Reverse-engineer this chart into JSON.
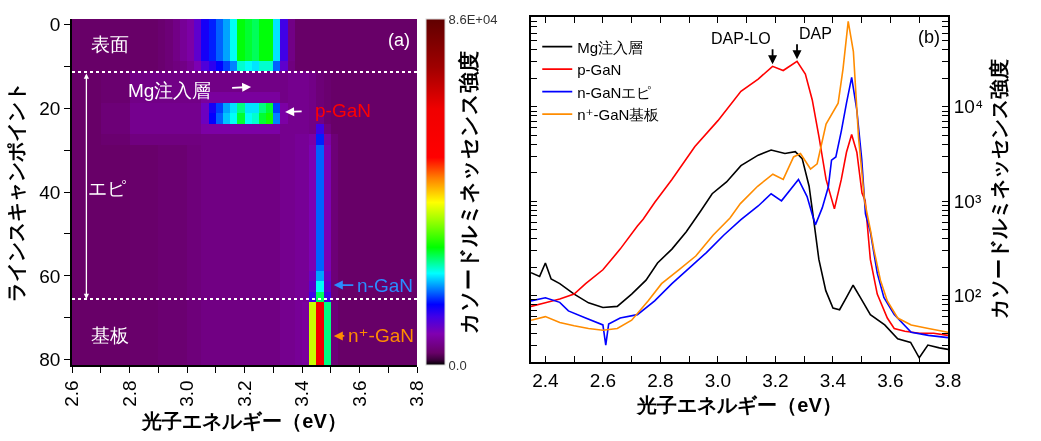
{
  "chart_data": [
    {
      "type": "heatmap",
      "xlabel": "光子エネルギー（eV）",
      "ylabel": "ラインスキャンポイント",
      "clabel": "カソードルミネッセンス強度",
      "x": [
        2.6125,
        2.6375,
        2.6625,
        2.6875,
        2.7125,
        2.7375,
        2.7625,
        2.7875,
        2.8125,
        2.8375,
        2.8625,
        2.8875,
        2.9125,
        2.9375,
        2.9625,
        2.9875,
        3.0125,
        3.0375,
        3.0625,
        3.0875,
        3.1125,
        3.1375,
        3.1625,
        3.1875,
        3.2125,
        3.2375,
        3.2625,
        3.2875,
        3.3125,
        3.3375,
        3.3625,
        3.3875,
        3.4125,
        3.4375,
        3.4625,
        3.4875,
        3.5125,
        3.5375,
        3.5625,
        3.5875,
        3.6125,
        3.6375,
        3.6625,
        3.6875,
        3.7125,
        3.7375,
        3.7625,
        3.7875
      ],
      "y_categories": [
        "0",
        null,
        null,
        null,
        null,
        null,
        null,
        null,
        "20",
        null,
        null,
        null,
        null,
        null,
        null,
        null,
        "40",
        null,
        null,
        null,
        null,
        null,
        null,
        null,
        "60",
        null,
        null,
        null,
        null,
        null,
        null,
        null,
        "80"
      ],
      "cells": [
        [
          3000,
          3000,
          3000,
          3000,
          3000,
          3000,
          3000,
          3000,
          3000,
          3000,
          3000,
          3000,
          3500,
          4000,
          5000,
          6000,
          7000,
          10000,
          14000,
          16000,
          18000,
          20000,
          23000,
          29000,
          28000,
          27000,
          29000,
          29000,
          22000,
          12000,
          5000,
          3000,
          3000,
          3000,
          3000,
          3000,
          3000,
          3000,
          3000,
          3000,
          3000,
          3000,
          3000,
          3000,
          3000,
          3000,
          3000,
          3000
        ],
        [
          3000,
          3000,
          3000,
          3000,
          3000,
          3000,
          3000,
          3000,
          3000,
          3000,
          3000,
          3000,
          3500,
          4000,
          5000,
          6000,
          7000,
          10000,
          14000,
          16000,
          18000,
          20000,
          23000,
          29000,
          28000,
          27000,
          29000,
          29000,
          22000,
          12000,
          5000,
          3000,
          3000,
          3000,
          3000,
          3000,
          3000,
          3000,
          3000,
          3000,
          3000,
          3000,
          3000,
          3000,
          3000,
          3000,
          3000,
          3000
        ],
        [
          3000,
          3000,
          3000,
          3000,
          3000,
          3000,
          3000,
          3000,
          3000,
          3000,
          3000,
          3000,
          3500,
          4000,
          5000,
          6000,
          7000,
          10000,
          14000,
          16000,
          18000,
          20000,
          23000,
          29000,
          28000,
          27000,
          29000,
          29000,
          22000,
          12000,
          5000,
          3000,
          3000,
          3000,
          3000,
          3000,
          3000,
          3000,
          3000,
          3000,
          3000,
          3000,
          3000,
          3000,
          3000,
          3000,
          3000,
          3000
        ],
        [
          3000,
          3000,
          3000,
          3000,
          3000,
          3000,
          3000,
          3000,
          3000,
          3000,
          3000,
          3000,
          3500,
          4000,
          5000,
          6000,
          7000,
          10000,
          14000,
          16000,
          18000,
          20000,
          23000,
          29000,
          28000,
          27000,
          29000,
          29000,
          22000,
          12000,
          5000,
          3000,
          3000,
          3000,
          3000,
          3000,
          3000,
          3000,
          3000,
          3000,
          3000,
          3000,
          3000,
          3000,
          3000,
          3000,
          3000,
          3000
        ],
        [
          3000,
          3000,
          3000,
          3000,
          3000,
          3000,
          3000,
          3000,
          3000,
          3000,
          3000,
          3000,
          3500,
          4000,
          4500,
          5000,
          6000,
          8000,
          11000,
          13000,
          15000,
          17000,
          19000,
          24000,
          23000,
          22000,
          24000,
          24000,
          18000,
          10000,
          4500,
          3000,
          3000,
          3000,
          3000,
          3000,
          3000,
          3000,
          3000,
          3000,
          3000,
          3000,
          3000,
          3000,
          3000,
          3000,
          3000,
          3000
        ],
        [
          3000,
          3000,
          3000,
          3000,
          3500,
          3500,
          3500,
          3500,
          5000,
          5000,
          5000,
          5000,
          5000,
          5000,
          5000,
          5000,
          5000,
          5000,
          5000,
          5000,
          5000,
          5000,
          5000,
          5000,
          5000,
          5000,
          5000,
          5000,
          5000,
          5000,
          5500,
          5500,
          5500,
          5000,
          4000,
          3500,
          3000,
          3000,
          3000,
          3000,
          3000,
          3000,
          3000,
          3000,
          3000,
          3000,
          3000,
          3000
        ],
        [
          3000,
          3000,
          3000,
          3000,
          3500,
          3500,
          3500,
          3500,
          5000,
          5000,
          5000,
          5000,
          5000,
          5000,
          5000,
          5000,
          5000,
          5000,
          5000,
          5000,
          5000,
          5000,
          5000,
          5000,
          5000,
          5000,
          5000,
          5000,
          5000,
          5000,
          5500,
          5500,
          5500,
          5000,
          4000,
          3500,
          3000,
          3000,
          3000,
          3000,
          3000,
          3000,
          3000,
          3000,
          3000,
          3000,
          3000,
          3000
        ],
        [
          3000,
          3000,
          3000,
          3000,
          3500,
          3500,
          3500,
          3500,
          5000,
          5000,
          5000,
          5000,
          5000,
          5000,
          5000,
          5000,
          5000,
          5000,
          6500,
          6500,
          6500,
          6500,
          6500,
          6500,
          6500,
          6500,
          6500,
          6500,
          6500,
          5000,
          5500,
          5500,
          5500,
          5000,
          4000,
          3500,
          3000,
          3000,
          3000,
          3000,
          3000,
          3000,
          3000,
          3000,
          3000,
          3000,
          3000,
          3000
        ],
        [
          3000,
          3000,
          3000,
          3000,
          4000,
          4000,
          4000,
          4000,
          5500,
          5500,
          5500,
          5500,
          5500,
          5500,
          5500,
          5500,
          5500,
          5500,
          9000,
          14000,
          17000,
          20000,
          22000,
          26000,
          22000,
          22000,
          26000,
          28000,
          17000,
          7000,
          5500,
          5500,
          5500,
          5000,
          4000,
          3500,
          3000,
          3000,
          3000,
          3000,
          3000,
          3000,
          3000,
          3000,
          3000,
          3000,
          3000,
          3000
        ],
        [
          3000,
          3000,
          3000,
          3000,
          4000,
          4000,
          4000,
          4000,
          5500,
          5500,
          5500,
          5500,
          5500,
          5500,
          5500,
          5500,
          5500,
          5500,
          9000,
          15000,
          18000,
          21000,
          23000,
          28000,
          23000,
          24000,
          28000,
          30000,
          19000,
          7000,
          5500,
          5500,
          5500,
          5000,
          5000,
          3500,
          3000,
          3000,
          3000,
          3000,
          3000,
          3000,
          3000,
          3000,
          3000,
          3000,
          3000,
          3000
        ],
        [
          3000,
          3000,
          3000,
          3000,
          4000,
          4000,
          4000,
          4000,
          5500,
          5500,
          5500,
          5500,
          5500,
          5500,
          5500,
          5500,
          5500,
          5500,
          7000,
          7000,
          7000,
          7000,
          7000,
          7000,
          7000,
          7000,
          7000,
          7000,
          7000,
          5500,
          5500,
          5500,
          5500,
          5000,
          12000,
          4500,
          3000,
          3000,
          3000,
          3000,
          3000,
          3000,
          3000,
          3000,
          3000,
          3000,
          3000,
          3000
        ],
        [
          3000,
          3000,
          3000,
          3000,
          3500,
          3500,
          3500,
          3500,
          4500,
          4500,
          4500,
          4500,
          4500,
          4500,
          4500,
          4500,
          4500,
          4500,
          4800,
          4800,
          4800,
          4800,
          4800,
          4800,
          4800,
          4800,
          4800,
          4800,
          4800,
          5500,
          5500,
          6000,
          6000,
          7000,
          16000,
          7000,
          4000,
          3000,
          3000,
          3000,
          3000,
          3000,
          3000,
          3000,
          3000,
          3000,
          3000,
          3000
        ],
        [
          3000,
          3000,
          3000,
          3000,
          3000,
          3000,
          3000,
          3000,
          3200,
          3200,
          3200,
          3200,
          3600,
          3600,
          3600,
          3600,
          4200,
          4200,
          4800,
          4800,
          4800,
          4800,
          4800,
          4800,
          4800,
          4800,
          4800,
          4800,
          4800,
          5500,
          5500,
          6000,
          6000,
          8000,
          18000,
          8000,
          4000,
          3000,
          3000,
          3000,
          3000,
          3000,
          3000,
          3000,
          3000,
          3000,
          3000,
          3000
        ],
        [
          3000,
          3000,
          3000,
          3000,
          3000,
          3000,
          3000,
          3000,
          3200,
          3200,
          3200,
          3200,
          3600,
          3600,
          3600,
          3600,
          4200,
          4200,
          4800,
          4800,
          4800,
          4800,
          4800,
          4800,
          4800,
          4800,
          4800,
          4800,
          4800,
          5500,
          5500,
          6000,
          6000,
          8000,
          18000,
          8000,
          4000,
          3000,
          3000,
          3000,
          3000,
          3000,
          3000,
          3000,
          3000,
          3000,
          3000,
          3000
        ],
        [
          3000,
          3000,
          3000,
          3000,
          3000,
          3000,
          3000,
          3000,
          3200,
          3200,
          3200,
          3200,
          3600,
          3600,
          3600,
          3600,
          4200,
          4200,
          4800,
          4800,
          4800,
          4800,
          4800,
          4800,
          4800,
          4800,
          4800,
          4800,
          4800,
          5500,
          5500,
          6000,
          6000,
          8000,
          18000,
          8000,
          4000,
          3000,
          3000,
          3000,
          3000,
          3000,
          3000,
          3000,
          3000,
          3000,
          3000,
          3000
        ],
        [
          3000,
          3000,
          3000,
          3000,
          3000,
          3000,
          3000,
          3000,
          3200,
          3200,
          3200,
          3200,
          3600,
          3600,
          3600,
          3600,
          4200,
          4200,
          4800,
          4800,
          4800,
          4800,
          4800,
          4800,
          4800,
          4800,
          4800,
          4800,
          4800,
          5500,
          5500,
          6000,
          6000,
          8000,
          18000,
          8000,
          4000,
          3000,
          3000,
          3000,
          3000,
          3000,
          3000,
          3000,
          3000,
          3000,
          3000,
          3000
        ],
        [
          3000,
          3000,
          3000,
          3000,
          3000,
          3000,
          3000,
          3000,
          3200,
          3200,
          3200,
          3200,
          3600,
          3600,
          3600,
          3600,
          4200,
          4200,
          4800,
          4800,
          4800,
          4800,
          4800,
          4800,
          4800,
          4800,
          4800,
          4800,
          4800,
          5500,
          5500,
          6000,
          6000,
          8000,
          18000,
          8000,
          4000,
          3000,
          3000,
          3000,
          3000,
          3000,
          3000,
          3000,
          3000,
          3000,
          3000,
          3000
        ],
        [
          3000,
          3000,
          3000,
          3000,
          3000,
          3000,
          3000,
          3000,
          3200,
          3200,
          3200,
          3200,
          3600,
          3600,
          3600,
          3600,
          4200,
          4200,
          4800,
          4800,
          4800,
          4800,
          4800,
          4800,
          4800,
          4800,
          4800,
          4800,
          4800,
          5500,
          5500,
          6000,
          6000,
          8000,
          18000,
          8000,
          4000,
          3000,
          3000,
          3000,
          3000,
          3000,
          3000,
          3000,
          3000,
          3000,
          3000,
          3000
        ],
        [
          3000,
          3000,
          3000,
          3000,
          3000,
          3000,
          3000,
          3000,
          3200,
          3200,
          3200,
          3200,
          3600,
          3600,
          3600,
          3600,
          4200,
          4200,
          4800,
          4800,
          4800,
          4800,
          4800,
          4800,
          4800,
          4800,
          4800,
          4800,
          4800,
          5500,
          5500,
          6000,
          6000,
          8000,
          18000,
          8000,
          4000,
          3000,
          3000,
          3000,
          3000,
          3000,
          3000,
          3000,
          3000,
          3000,
          3000,
          3000
        ],
        [
          3000,
          3000,
          3000,
          3000,
          3000,
          3000,
          3000,
          3000,
          3200,
          3200,
          3200,
          3200,
          3600,
          3600,
          3600,
          3600,
          4200,
          4200,
          4800,
          4800,
          4800,
          4800,
          4800,
          4800,
          4800,
          4800,
          4800,
          4800,
          4800,
          5500,
          5500,
          6000,
          6000,
          8000,
          18000,
          8000,
          4000,
          3000,
          3000,
          3000,
          3000,
          3000,
          3000,
          3000,
          3000,
          3000,
          3000,
          3000
        ],
        [
          3000,
          3000,
          3000,
          3000,
          3000,
          3000,
          3000,
          3000,
          3200,
          3200,
          3200,
          3200,
          3600,
          3600,
          3600,
          3600,
          4200,
          4200,
          4800,
          4800,
          4800,
          4800,
          4800,
          4800,
          4800,
          4800,
          4800,
          4800,
          4800,
          5500,
          5500,
          6000,
          6000,
          8000,
          18000,
          8000,
          4000,
          3000,
          3000,
          3000,
          3000,
          3000,
          3000,
          3000,
          3000,
          3000,
          3000,
          3000
        ],
        [
          3000,
          3000,
          3000,
          3000,
          3000,
          3000,
          3000,
          3000,
          3200,
          3200,
          3200,
          3200,
          3600,
          3600,
          3600,
          3600,
          4200,
          4200,
          4800,
          4800,
          4800,
          4800,
          4800,
          4800,
          4800,
          4800,
          4800,
          4800,
          4800,
          5500,
          5500,
          6000,
          6000,
          8000,
          18000,
          8000,
          4000,
          3000,
          3000,
          3000,
          3000,
          3000,
          3000,
          3000,
          3000,
          3000,
          3000,
          3000
        ],
        [
          3000,
          3000,
          3000,
          3000,
          3000,
          3000,
          3000,
          3000,
          3200,
          3200,
          3200,
          3200,
          3600,
          3600,
          3600,
          3600,
          4200,
          4200,
          4800,
          4800,
          4800,
          4800,
          4800,
          4800,
          4800,
          4800,
          4800,
          4800,
          4800,
          5500,
          5500,
          6000,
          6000,
          8000,
          18000,
          8000,
          4000,
          3000,
          3000,
          3000,
          3000,
          3000,
          3000,
          3000,
          3000,
          3000,
          3000,
          3000
        ],
        [
          3000,
          3000,
          3000,
          3000,
          3000,
          3000,
          3000,
          3000,
          3200,
          3200,
          3200,
          3200,
          3600,
          3600,
          3600,
          3600,
          4200,
          4200,
          4800,
          4800,
          4800,
          4800,
          4800,
          4800,
          4800,
          4800,
          4800,
          4800,
          4800,
          5500,
          5500,
          6000,
          6000,
          8000,
          18000,
          8000,
          4000,
          3000,
          3000,
          3000,
          3000,
          3000,
          3000,
          3000,
          3000,
          3000,
          3000,
          3000
        ],
        [
          3000,
          3000,
          3000,
          3000,
          3000,
          3000,
          3000,
          3000,
          3200,
          3200,
          3200,
          3200,
          3600,
          3600,
          3600,
          3600,
          4200,
          4200,
          4800,
          4800,
          4800,
          4800,
          4800,
          4800,
          4800,
          4800,
          4800,
          4800,
          4800,
          5500,
          5500,
          6000,
          6000,
          9000,
          20000,
          9000,
          4000,
          3000,
          3000,
          3000,
          3000,
          3000,
          3000,
          3000,
          3000,
          3000,
          3000,
          3000
        ],
        [
          3000,
          3000,
          3000,
          3000,
          3000,
          3000,
          3000,
          3000,
          3200,
          3200,
          3200,
          3200,
          3600,
          3600,
          3600,
          3600,
          4200,
          4200,
          4800,
          4800,
          4800,
          4800,
          4800,
          4800,
          4800,
          4800,
          4800,
          4800,
          4800,
          5500,
          5500,
          6000,
          6000,
          10000,
          23000,
          10000,
          4000,
          3000,
          3000,
          3000,
          3000,
          3000,
          3000,
          3000,
          3000,
          3000,
          3000,
          3000
        ],
        [
          3000,
          3000,
          3000,
          3000,
          3000,
          3000,
          3000,
          3000,
          3200,
          3200,
          3200,
          3200,
          3600,
          3600,
          3600,
          3600,
          4200,
          4200,
          4800,
          4800,
          4800,
          4800,
          4800,
          4800,
          4800,
          4800,
          4800,
          4800,
          4800,
          5500,
          5500,
          6000,
          6000,
          12000,
          27000,
          12000,
          4000,
          3000,
          3000,
          3000,
          3000,
          3000,
          3000,
          3000,
          3000,
          3000,
          3000,
          3000
        ],
        [
          3000,
          3000,
          3000,
          3000,
          3000,
          3000,
          3000,
          3000,
          3200,
          3200,
          3200,
          3200,
          3600,
          3600,
          3600,
          3600,
          4200,
          4200,
          4800,
          4800,
          4800,
          4800,
          4800,
          4800,
          4800,
          4800,
          4800,
          4800,
          4800,
          5500,
          5500,
          6000,
          6500,
          38000,
          60000,
          26000,
          4000,
          3000,
          3000,
          3000,
          3000,
          3000,
          3000,
          3000,
          3000,
          3000,
          3000,
          3000
        ],
        [
          3000,
          3000,
          3000,
          3000,
          3000,
          3000,
          3000,
          3000,
          3200,
          3200,
          3200,
          3200,
          3600,
          3600,
          3600,
          3600,
          4200,
          4200,
          4800,
          4800,
          4800,
          4800,
          4800,
          4800,
          4800,
          4800,
          4800,
          4800,
          4800,
          5500,
          5500,
          6000,
          6500,
          38000,
          60000,
          26000,
          4000,
          3000,
          3000,
          3000,
          3000,
          3000,
          3000,
          3000,
          3000,
          3000,
          3000,
          3000
        ],
        [
          3000,
          3000,
          3000,
          3000,
          3000,
          3000,
          3000,
          3000,
          3200,
          3200,
          3200,
          3200,
          3600,
          3600,
          3600,
          3600,
          4200,
          4200,
          4800,
          4800,
          4800,
          4800,
          4800,
          4800,
          4800,
          4800,
          4800,
          4800,
          4800,
          5500,
          5500,
          6000,
          6500,
          38000,
          60000,
          26000,
          4000,
          3000,
          3000,
          3000,
          3000,
          3000,
          3000,
          3000,
          3000,
          3000,
          3000,
          3000
        ],
        [
          3000,
          3000,
          3000,
          3000,
          3000,
          3000,
          3000,
          3000,
          3200,
          3200,
          3200,
          3200,
          3600,
          3600,
          3600,
          3600,
          4200,
          4200,
          4800,
          4800,
          4800,
          4800,
          4800,
          4800,
          4800,
          4800,
          4800,
          4800,
          4800,
          5500,
          5500,
          6000,
          6500,
          38000,
          60000,
          26000,
          4000,
          3000,
          3000,
          3000,
          3000,
          3000,
          3000,
          3000,
          3000,
          3000,
          3000,
          3000
        ],
        [
          3000,
          3000,
          3000,
          3000,
          3000,
          3000,
          3000,
          3000,
          3200,
          3200,
          3200,
          3200,
          3600,
          3600,
          3600,
          3600,
          4200,
          4200,
          4800,
          4800,
          4800,
          4800,
          4800,
          4800,
          4800,
          4800,
          4800,
          4800,
          4800,
          5500,
          5500,
          6000,
          6500,
          38000,
          60000,
          26000,
          4000,
          3000,
          3000,
          3000,
          3000,
          3000,
          3000,
          3000,
          3000,
          3000,
          3000,
          3000
        ],
        [
          3000,
          3000,
          3000,
          3000,
          3000,
          3000,
          3000,
          3000,
          3200,
          3200,
          3200,
          3200,
          3600,
          3600,
          3600,
          3600,
          4200,
          4200,
          4800,
          4800,
          4800,
          4800,
          4800,
          4800,
          4800,
          4800,
          4800,
          4800,
          4800,
          5500,
          5500,
          6000,
          6500,
          38000,
          60000,
          26000,
          4000,
          3000,
          3000,
          3000,
          3000,
          3000,
          3000,
          3000,
          3000,
          3000,
          3000,
          3000
        ]
      ],
      "xlim": [
        2.6,
        3.8
      ],
      "xticks": [
        2.6,
        {
          "value": 2.7,
          "label": null
        },
        2.8,
        {
          "value": 2.9,
          "label": null
        },
        {
          "value": 3.0,
          "label": "3.0"
        },
        {
          "value": 3.1,
          "label": null
        },
        3.2,
        {
          "value": 3.3,
          "label": null
        },
        3.4,
        {
          "value": 3.5,
          "label": null
        },
        3.6,
        {
          "value": 3.7,
          "label": null
        },
        3.8
      ],
      "clim": [
        0,
        86000
      ],
      "cticks": [
        {
          "value": 0,
          "label": "0.0"
        },
        {
          "value": 86000,
          "label": "8.6E+04"
        }
      ],
      "annotations": [
        "表面",
        "基板",
        "エピ",
        "Mg注入層",
        "p-GaN",
        "n-GaN",
        "n⁺-GaN",
        "(a)"
      ]
    },
    {
      "type": "line",
      "xlabel": "光子エネルギー（eV）",
      "ylabel": "カソードルミネッセンス強度",
      "log": "y",
      "legend": "top left",
      "xlim": [
        2.35,
        3.8
      ],
      "xticks": [
        2.4,
        {
          "value": 2.5,
          "label": null
        },
        2.6,
        {
          "value": 2.7,
          "label": null
        },
        2.8,
        {
          "value": 2.9,
          "label": null
        },
        {
          "value": 3.0,
          "label": "3.0"
        },
        {
          "value": 3.1,
          "label": null
        },
        3.2,
        {
          "value": 3.3,
          "label": null
        },
        3.4,
        {
          "value": 3.5,
          "label": null
        },
        3.6,
        {
          "value": 3.7,
          "label": null
        },
        3.8
      ],
      "ylim": [
        20,
        90000
      ],
      "yticks": [
        {
          "value": 20,
          "label": null
        },
        {
          "value": 30,
          "label": null
        },
        {
          "value": 40,
          "label": null
        },
        {
          "value": 50,
          "label": null
        },
        {
          "value": 60,
          "label": null
        },
        {
          "value": 70,
          "label": null
        },
        {
          "value": 80,
          "label": null
        },
        {
          "value": 90,
          "label": null
        },
        {
          "value": 100,
          "label": "10²"
        },
        {
          "value": 200,
          "label": null
        },
        {
          "value": 300,
          "label": null
        },
        {
          "value": 400,
          "label": null
        },
        {
          "value": 500,
          "label": null
        },
        {
          "value": 600,
          "label": null
        },
        {
          "value": 700,
          "label": null
        },
        {
          "value": 800,
          "label": null
        },
        {
          "value": 900,
          "label": null
        },
        {
          "value": 1000,
          "label": "10³"
        },
        {
          "value": 2000,
          "label": null
        },
        {
          "value": 3000,
          "label": null
        },
        {
          "value": 4000,
          "label": null
        },
        {
          "value": 5000,
          "label": null
        },
        {
          "value": 6000,
          "label": null
        },
        {
          "value": 7000,
          "label": null
        },
        {
          "value": 8000,
          "label": null
        },
        {
          "value": 9000,
          "label": null
        },
        {
          "value": 10000,
          "label": "10⁴"
        },
        {
          "value": 20000,
          "label": null
        },
        {
          "value": 30000,
          "label": null
        },
        {
          "value": 40000,
          "label": null
        },
        {
          "value": 50000,
          "label": null
        },
        {
          "value": 60000,
          "label": null
        },
        {
          "value": 70000,
          "label": null
        },
        {
          "value": 80000,
          "label": null
        },
        {
          "value": 90000,
          "label": null
        }
      ],
      "series": [
        {
          "name": "Mg注入層",
          "color": "#000000",
          "x": [
            2.35,
            2.38,
            2.4,
            2.42,
            2.45,
            2.5,
            2.55,
            2.6,
            2.65,
            2.7,
            2.75,
            2.79,
            2.84,
            2.89,
            2.94,
            2.98,
            3.03,
            3.08,
            3.14,
            3.185,
            3.233,
            3.269,
            3.293,
            3.317,
            3.334,
            3.351,
            3.375,
            3.4,
            3.423,
            3.447,
            3.47,
            3.495,
            3.53,
            3.58,
            3.625,
            3.67,
            3.7,
            3.73,
            3.77,
            3.8
          ],
          "values": [
            175,
            160,
            222,
            150,
            134,
            104,
            84,
            75,
            77,
            104,
            146,
            222,
            311,
            475,
            787,
            1200,
            1600,
            2380,
            3070,
            3480,
            3200,
            3340,
            2820,
            1440,
            600,
            242,
            113,
            74,
            71,
            96,
            129,
            96,
            63,
            49,
            35,
            32,
            22,
            30,
            28,
            27
          ]
        },
        {
          "name": "p-GaN",
          "color": "#ff0000",
          "x": [
            2.35,
            2.4,
            2.45,
            2.5,
            2.54,
            2.6,
            2.66,
            2.72,
            2.74,
            2.78,
            2.84,
            2.92,
            3.0,
            3.08,
            3.14,
            3.19,
            3.227,
            3.275,
            3.304,
            3.328,
            3.352,
            3.376,
            3.405,
            3.429,
            3.447,
            3.465,
            3.483,
            3.501,
            3.512,
            3.53,
            3.554,
            3.589,
            3.613,
            3.65,
            3.7,
            3.75,
            3.8
          ],
          "values": [
            77,
            84,
            92,
            104,
            134,
            188,
            311,
            547,
            645,
            970,
            1700,
            3790,
            7130,
            14600,
            19600,
            26800,
            24200,
            30300,
            22200,
            11800,
            4680,
            1700,
            830,
            1700,
            3300,
            5080,
            3300,
            1220,
            1010,
            242,
            104,
            58,
            45,
            42,
            40,
            40,
            38
          ]
        },
        {
          "name": "n-GaNエピ",
          "color": "#0000ff",
          "x": [
            2.35,
            2.4,
            2.45,
            2.48,
            2.54,
            2.6,
            2.61,
            2.62,
            2.66,
            2.72,
            2.78,
            2.84,
            2.9,
            2.96,
            3.02,
            3.08,
            3.14,
            3.185,
            3.221,
            3.28,
            3.31,
            3.328,
            3.339,
            3.363,
            3.384,
            3.395,
            3.41,
            3.429,
            3.447,
            3.465,
            3.483,
            3.5,
            3.513,
            3.53,
            3.554,
            3.577,
            3.613,
            3.672,
            3.732,
            3.8
          ],
          "values": [
            88,
            95,
            85,
            69,
            58,
            49,
            30,
            50,
            58,
            63,
            88,
            134,
            196,
            286,
            436,
            637,
            890,
            1200,
            1010,
            1700,
            1120,
            724,
            562,
            855,
            1420,
            2720,
            2940,
            5530,
            10900,
            20500,
            9180,
            2800,
            733,
            475,
            173,
            96,
            63,
            41,
            38,
            36
          ]
        },
        {
          "name": "n⁺-GaN基板",
          "color": "#ff8c00",
          "x": [
            2.35,
            2.4,
            2.45,
            2.5,
            2.55,
            2.6,
            2.65,
            2.7,
            2.757,
            2.804,
            2.864,
            2.923,
            2.983,
            3.042,
            3.078,
            3.138,
            3.191,
            3.227,
            3.263,
            3.287,
            3.322,
            3.345,
            3.376,
            3.418,
            3.435,
            3.453,
            3.471,
            3.489,
            3.51,
            3.53,
            3.542,
            3.565,
            3.589,
            3.625,
            3.672,
            3.732,
            3.8
          ],
          "values": [
            55,
            60,
            52,
            48,
            45,
            43,
            45,
            55,
            88,
            134,
            188,
            263,
            436,
            665,
            944,
            1440,
            1930,
            1700,
            2940,
            3200,
            2190,
            2490,
            6550,
            10900,
            25200,
            80000,
            38400,
            4680,
            1000,
            500,
            311,
            146,
            88,
            58,
            49,
            45,
            41
          ]
        }
      ],
      "annotations": [
        {
          "text": "DAP-LO",
          "x": 3.19,
          "y": 26800
        },
        {
          "text": "DAP",
          "x": 3.275,
          "y": 30300
        },
        "(b)"
      ]
    }
  ]
}
